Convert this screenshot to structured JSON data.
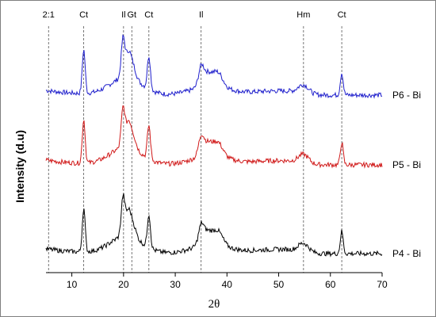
{
  "chart_data": {
    "type": "line",
    "xlabel": "2θ",
    "ylabel": "Intensity (d.u)",
    "xlim": [
      0,
      70
    ],
    "x_ticks": [
      "10",
      "20",
      "30",
      "40",
      "50",
      "60",
      "70"
    ],
    "grid": false,
    "peak_markers": [
      {
        "label": "2:1",
        "x": 5.5
      },
      {
        "label": "Ct",
        "x": 12.3
      },
      {
        "label": "Il",
        "x": 20.0
      },
      {
        "label": "Gt",
        "x": 21.6
      },
      {
        "label": "Ct",
        "x": 24.9
      },
      {
        "label": "Il",
        "x": 35.0
      },
      {
        "label": "Hm",
        "x": 54.8
      },
      {
        "label": "Ct",
        "x": 62.2
      }
    ],
    "series": [
      {
        "name": "P6 - Bi",
        "color": "#1f1fcc",
        "offset": 2.0
      },
      {
        "name": "P5 - Bi",
        "color": "#d01818",
        "offset": 1.0
      },
      {
        "name": "P4 - Bi",
        "color": "#000000",
        "offset": 0.0
      }
    ]
  }
}
